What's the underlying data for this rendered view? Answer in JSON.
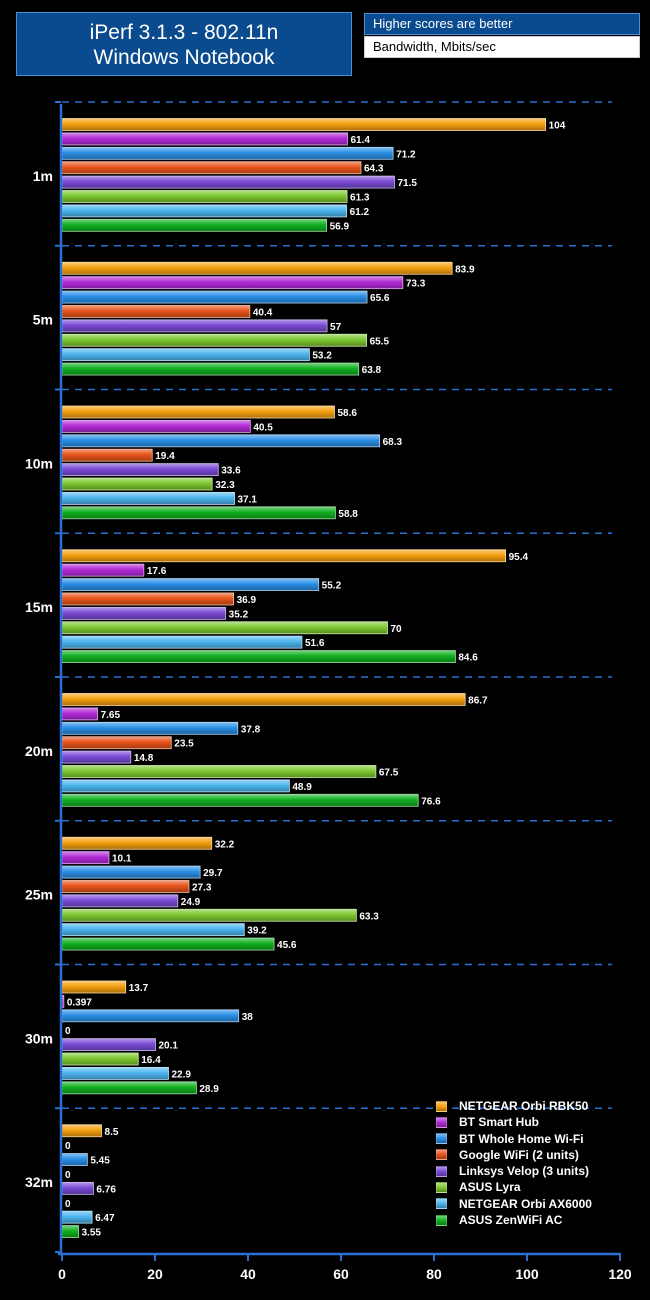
{
  "title": {
    "line1": "iPerf 3.1.3 - 802.11n",
    "line2": "Windows Notebook"
  },
  "notes": {
    "top": "Higher scores are better",
    "bottom": "Bandwidth, Mbits/sec"
  },
  "chart_data": {
    "type": "bar",
    "orientation": "horizontal",
    "title": "iPerf 3.1.3 - 802.11n Windows Notebook",
    "xlabel": "Bandwidth, Mbits/sec",
    "ylabel": "",
    "xlim": [
      0,
      120
    ],
    "xticks": [
      "0",
      "20",
      "40",
      "60",
      "80",
      "100",
      "120"
    ],
    "categories": [
      "1m",
      "5m",
      "10m",
      "15m",
      "20m",
      "25m",
      "30m",
      "32m"
    ],
    "series": [
      {
        "name": "NETGEAR Orbi RBK50",
        "color": "#f5a00f",
        "values": [
          104,
          83.9,
          58.6,
          95.4,
          86.7,
          32.2,
          13.7,
          8.5
        ],
        "labels": [
          "104",
          "83.9",
          "58.6",
          "95.4",
          "86.7",
          "32.2",
          "13.7",
          "8.5"
        ]
      },
      {
        "name": "BT Smart Hub",
        "color": "#b32ad6",
        "values": [
          61.4,
          73.3,
          40.5,
          17.6,
          7.65,
          10.1,
          0.397,
          0
        ],
        "labels": [
          "61.4",
          "73.3",
          "40.5",
          "17.6",
          "7.65",
          "10.1",
          "0.397",
          "0"
        ]
      },
      {
        "name": "BT Whole Home Wi-Fi",
        "color": "#2a8fe6",
        "values": [
          71.2,
          65.6,
          68.3,
          55.2,
          37.8,
          29.7,
          38,
          5.45
        ],
        "labels": [
          "71.2",
          "65.6",
          "68.3",
          "55.2",
          "37.8",
          "29.7",
          "38",
          "5.45"
        ]
      },
      {
        "name": "Google WiFi (2 units)",
        "color": "#e8541a",
        "values": [
          64.3,
          40.4,
          19.4,
          36.9,
          23.5,
          27.3,
          0,
          0
        ],
        "labels": [
          "64.3",
          "40.4",
          "19.4",
          "36.9",
          "23.5",
          "27.3",
          "0",
          "0"
        ]
      },
      {
        "name": "Linksys Velop (3 units)",
        "color": "#7a4ad6",
        "values": [
          71.5,
          57,
          33.6,
          35.2,
          14.8,
          24.9,
          20.1,
          6.76
        ],
        "labels": [
          "71.5",
          "57",
          "33.6",
          "35.2",
          "14.8",
          "24.9",
          "20.1",
          "6.76"
        ]
      },
      {
        "name": "ASUS Lyra",
        "color": "#7ec830",
        "values": [
          61.3,
          65.5,
          32.3,
          70,
          67.5,
          63.3,
          16.4,
          0
        ],
        "labels": [
          "61.3",
          "65.5",
          "32.3",
          "70",
          "67.5",
          "63.3",
          "16.4",
          "0"
        ]
      },
      {
        "name": "NETGEAR Orbi AX6000",
        "color": "#4cb6ee",
        "values": [
          61.2,
          53.2,
          37.1,
          51.6,
          48.9,
          39.2,
          22.9,
          6.47
        ],
        "labels": [
          "61.2",
          "53.2",
          "37.1",
          "51.6",
          "48.9",
          "39.2",
          "22.9",
          "6.47"
        ]
      },
      {
        "name": "ASUS ZenWiFi AC",
        "color": "#10b020",
        "values": [
          56.9,
          63.8,
          58.8,
          84.6,
          76.6,
          45.6,
          28.9,
          3.55
        ],
        "labels": [
          "56.9",
          "63.8",
          "58.8",
          "84.6",
          "76.6",
          "45.6",
          "28.9",
          "3.55"
        ]
      }
    ],
    "grid": true,
    "legend_position": "bottom-right"
  }
}
